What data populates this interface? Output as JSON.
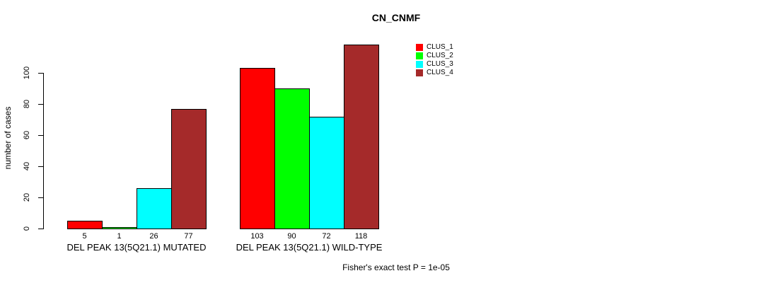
{
  "chart_data": {
    "type": "bar",
    "title": "CN_CNMF",
    "xlabel": "",
    "ylabel": "number of cases",
    "ylim": [
      0,
      120
    ],
    "yticks": [
      0,
      20,
      40,
      60,
      80,
      100
    ],
    "grid": false,
    "legend_position": "top-right",
    "bar_value_labels_shown": true,
    "series": [
      {
        "name": "CLUS_1",
        "color": "#FF0000"
      },
      {
        "name": "CLUS_2",
        "color": "#00FF00"
      },
      {
        "name": "CLUS_3",
        "color": "#00FFFF"
      },
      {
        "name": "CLUS_4",
        "color": "#A52A2A"
      }
    ],
    "groups": [
      {
        "label": "DEL PEAK 13(5Q21.1) MUTATED",
        "values": [
          5,
          1,
          26,
          77
        ]
      },
      {
        "label": "DEL PEAK 13(5Q21.1) WILD-TYPE",
        "values": [
          103,
          90,
          72,
          118
        ]
      }
    ]
  },
  "footer": {
    "note": "Fisher's exact test P = 1e-05"
  }
}
